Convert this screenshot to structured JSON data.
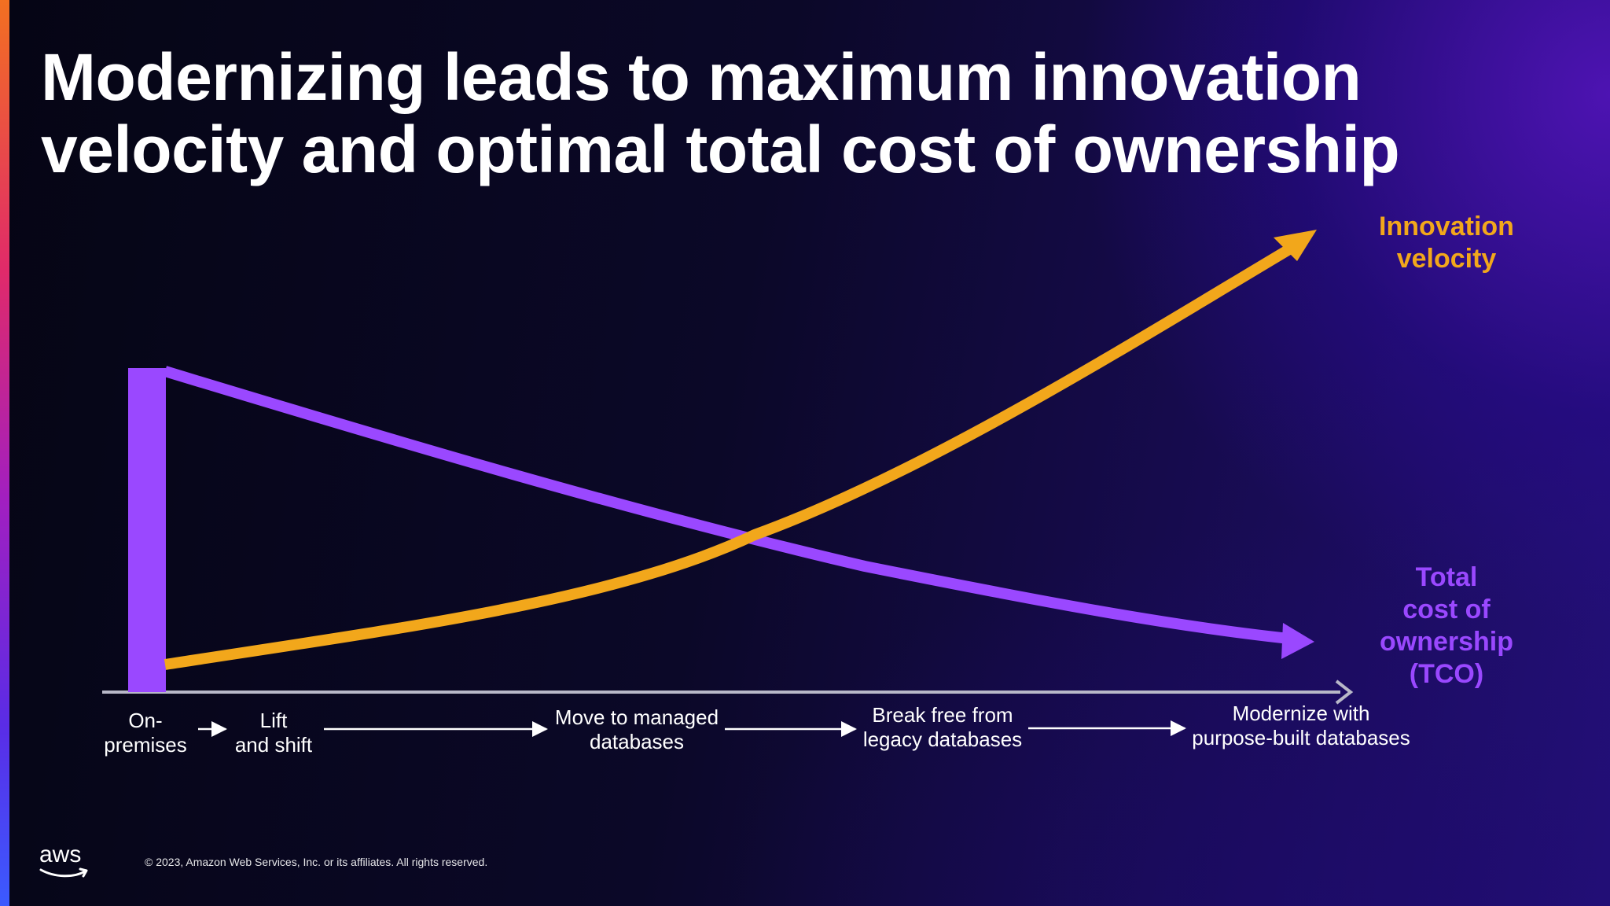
{
  "slide": {
    "title_lines": [
      "Modernizing leads to maximum innovation",
      "velocity and optimal total cost of ownership"
    ]
  },
  "diagram": {
    "stages": [
      {
        "lines": [
          "On-",
          "premises"
        ]
      },
      {
        "lines": [
          "Lift",
          "and shift"
        ]
      },
      {
        "lines": [
          "Move to managed",
          "databases"
        ]
      },
      {
        "lines": [
          "Break free from",
          "legacy databases"
        ]
      },
      {
        "lines": [
          "Modernize with",
          "purpose-built databases"
        ]
      }
    ],
    "innovation_label": [
      "Innovation",
      "velocity"
    ],
    "tco_label": [
      "Total",
      "cost of",
      "ownership",
      "(TCO)"
    ],
    "colors": {
      "innovation": "#f2a71b",
      "tco": "#9a48ff",
      "axis": "#b8b8c8",
      "flow_arrows": "#ffffff"
    }
  },
  "footer": {
    "logo_text": "aws",
    "copyright": "© 2023, Amazon Web Services, Inc. or its affiliates. All rights reserved."
  }
}
